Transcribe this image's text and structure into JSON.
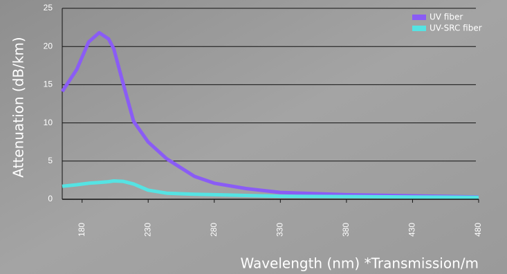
{
  "chart_data": {
    "type": "line",
    "y_label": "Attenuation (dB/km)",
    "x_label": "Wavelength (nm) *Transmission/m",
    "xlim": [
      165,
      480
    ],
    "ylim": [
      0,
      25
    ],
    "xticks": [
      180,
      230,
      280,
      330,
      380,
      430,
      480
    ],
    "yticks": [
      0,
      5,
      10,
      15,
      20,
      25
    ],
    "grid": true,
    "legend": "upper right",
    "x": [
      165,
      176,
      185,
      193,
      200,
      204,
      211,
      219,
      230,
      244,
      265,
      280,
      304,
      330,
      380,
      430,
      480
    ],
    "series": [
      {
        "name": "UV fiber",
        "color": "#8a5cf5",
        "values": [
          14.1,
          17,
          20.6,
          21.8,
          21,
          19.7,
          15.2,
          10.2,
          7.5,
          5.3,
          3.0,
          2.1,
          1.4,
          0.9,
          0.6,
          0.45,
          0.3
        ]
      },
      {
        "name": "UV-SRC fiber",
        "color": "#55e3e3",
        "values": [
          1.7,
          1.9,
          2.1,
          2.2,
          2.3,
          2.4,
          2.35,
          2.0,
          1.2,
          0.8,
          0.65,
          0.6,
          0.5,
          0.4,
          0.35,
          0.3,
          0.25
        ]
      }
    ]
  }
}
